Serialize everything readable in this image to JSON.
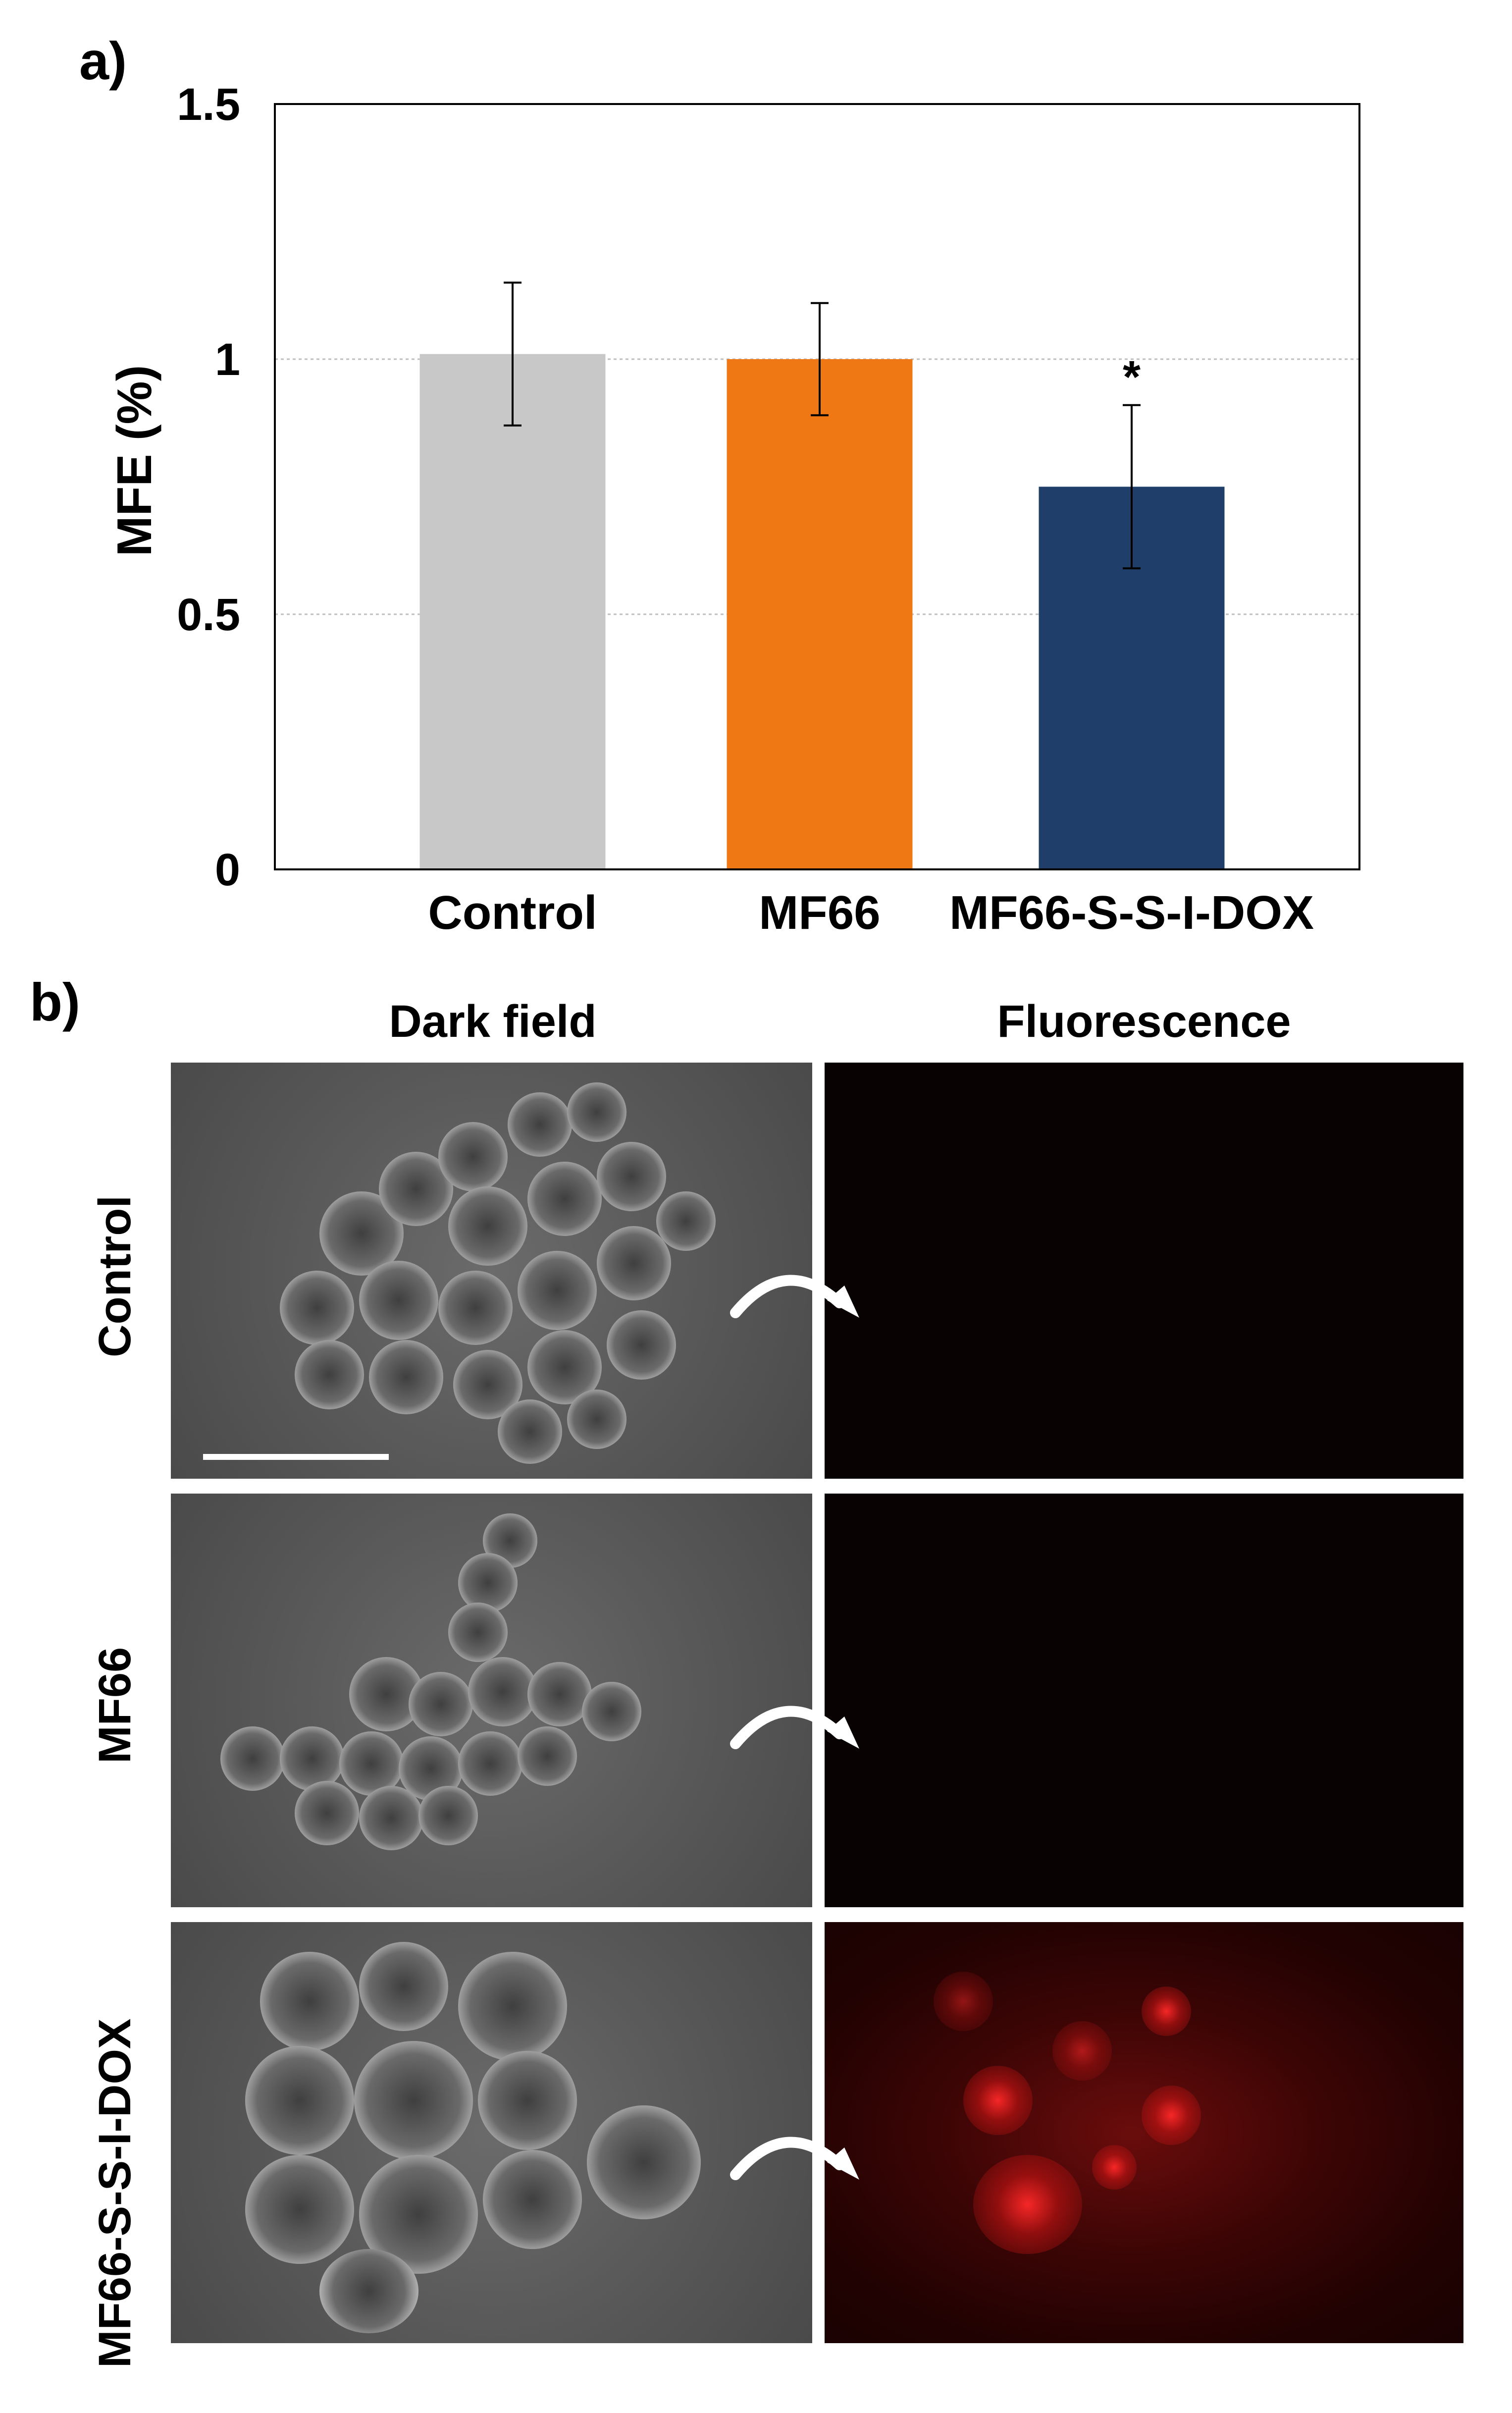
{
  "panel_a_label": "a)",
  "panel_b_label": "b)",
  "chart_data": {
    "type": "bar",
    "title": "",
    "xlabel": "",
    "ylabel": "MFE (%)",
    "ylim": [
      0,
      1.5
    ],
    "yticks": [
      0,
      0.5,
      1,
      1.5
    ],
    "ytick_labels": [
      "0",
      "0.5",
      "1",
      "1.5"
    ],
    "grid": "horizontal dotted",
    "categories": [
      "Control",
      "MF66",
      "MF66-S-S-I-DOX"
    ],
    "values": [
      1.01,
      1.0,
      0.75
    ],
    "errors": [
      0.14,
      0.11,
      0.16
    ],
    "annotations": [
      "",
      "",
      "*"
    ],
    "colors": [
      "#c8c8c8",
      "#f07814",
      "#1f3f6a"
    ]
  },
  "images": {
    "columns": [
      "Dark field",
      "Fluorescence"
    ],
    "rows": [
      "Control",
      "MF66",
      "MF66-S-S-I-DOX"
    ]
  },
  "icons": {
    "arrow": "curved-arrow-icon",
    "scalebar": "scale-bar"
  }
}
